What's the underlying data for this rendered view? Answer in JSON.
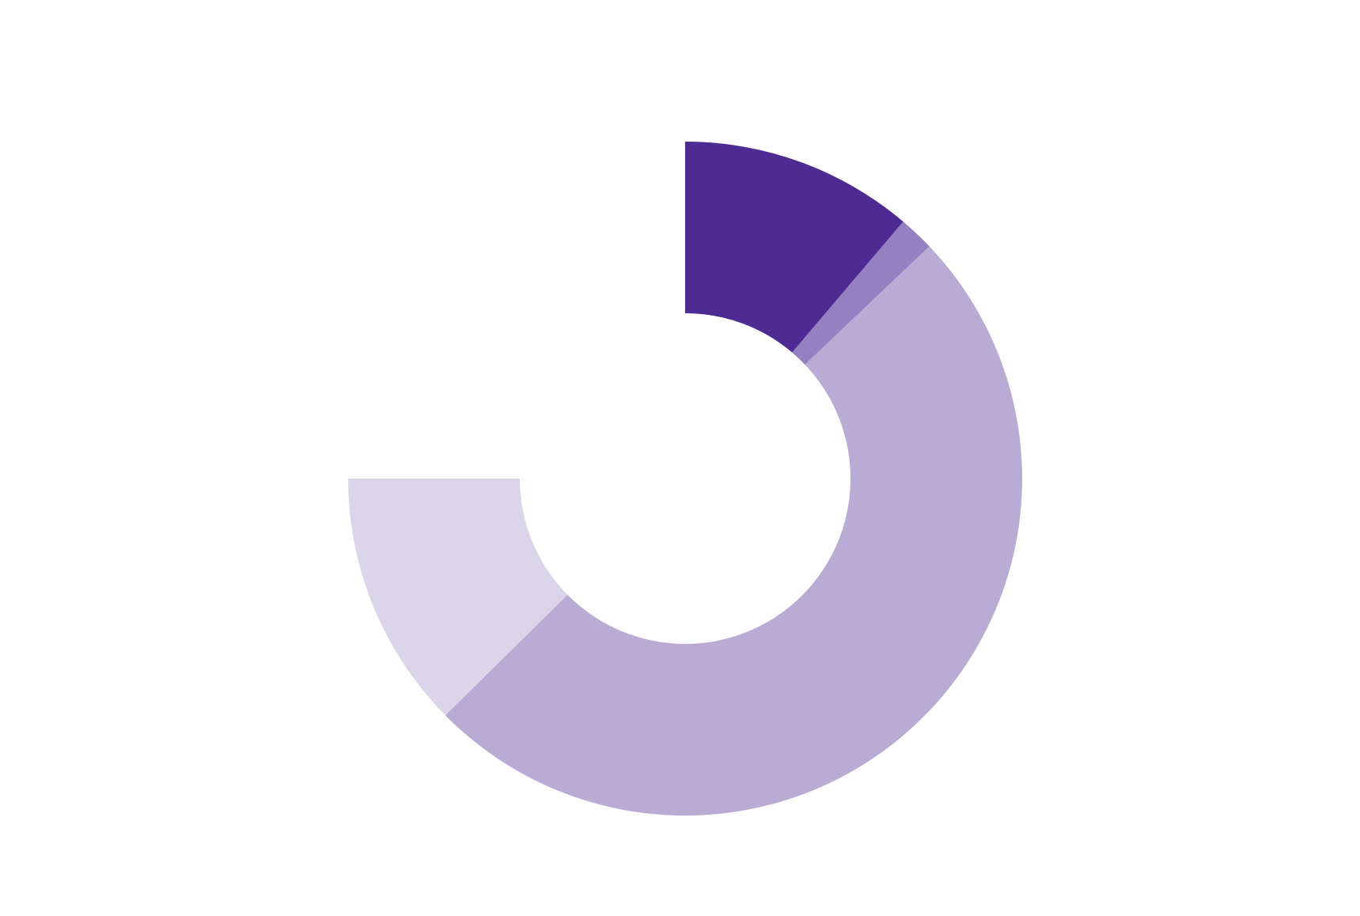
{
  "chart_data": {
    "type": "donut",
    "values": [
      11.2,
      1.7,
      49.7,
      12.4
    ],
    "colors": [
      "#4e2b93",
      "#9580c2",
      "#b8acd4",
      "#dbd5ea"
    ]
  }
}
